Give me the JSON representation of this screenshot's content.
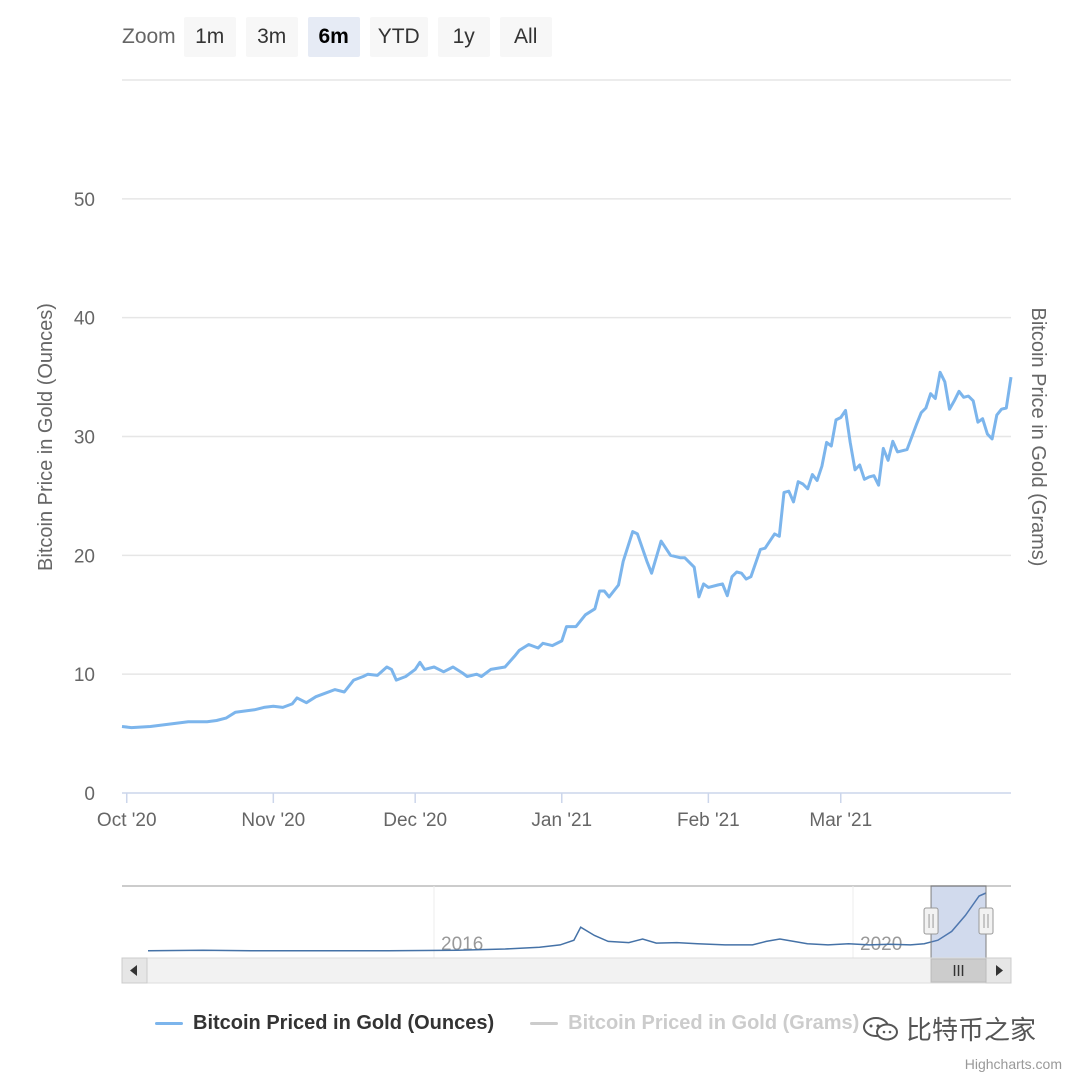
{
  "zoom": {
    "label": "Zoom",
    "buttons": [
      {
        "label": "1m",
        "active": false
      },
      {
        "label": "3m",
        "active": false
      },
      {
        "label": "6m",
        "active": true
      },
      {
        "label": "YTD",
        "active": false
      },
      {
        "label": "1y",
        "active": false
      },
      {
        "label": "All",
        "active": false
      }
    ]
  },
  "legend": {
    "items": [
      {
        "label": "Bitcoin Priced in Gold (Ounces)",
        "color": "#7cb5ec",
        "text_color": "#333333",
        "visible": true
      },
      {
        "label": "Bitcoin Priced in Gold (Grams)",
        "color": "#cccccc",
        "text_color": "#cccccc",
        "visible": false
      }
    ]
  },
  "credits": "Highcharts.com",
  "watermark": {
    "text": "比特币之家",
    "icon": "chat-bubbles-icon"
  },
  "chart_data": {
    "type": "line",
    "title": "",
    "ylabel_left": "Bitcoin Price in Gold (Ounces)",
    "ylabel_right": "Bitcoin Price in Gold (Grams)",
    "ylim": [
      0,
      60
    ],
    "yticks": [
      0,
      10,
      20,
      30,
      40,
      50
    ],
    "grid": true,
    "legend_position": "bottom-center",
    "x_range": [
      "2020-09-30",
      "2021-03-31"
    ],
    "xticks": [
      {
        "label": "Oct '20",
        "date": "2020-10-01"
      },
      {
        "label": "Nov '20",
        "date": "2020-11-01"
      },
      {
        "label": "Dec '20",
        "date": "2020-12-01"
      },
      {
        "label": "Jan '21",
        "date": "2021-01-01"
      },
      {
        "label": "Feb '21",
        "date": "2021-02-01"
      },
      {
        "label": "Mar '21",
        "date": "2021-03-01"
      }
    ],
    "series": [
      {
        "name": "Bitcoin Priced in Gold (Ounces)",
        "color": "#7cb5ec",
        "points": [
          [
            "2020-09-30",
            5.6
          ],
          [
            "2020-10-02",
            5.5
          ],
          [
            "2020-10-06",
            5.6
          ],
          [
            "2020-10-10",
            5.8
          ],
          [
            "2020-10-14",
            6.0
          ],
          [
            "2020-10-18",
            6.0
          ],
          [
            "2020-10-20",
            6.1
          ],
          [
            "2020-10-22",
            6.3
          ],
          [
            "2020-10-24",
            6.8
          ],
          [
            "2020-10-26",
            6.9
          ],
          [
            "2020-10-28",
            7.0
          ],
          [
            "2020-10-30",
            7.2
          ],
          [
            "2020-11-01",
            7.3
          ],
          [
            "2020-11-03",
            7.2
          ],
          [
            "2020-11-05",
            7.5
          ],
          [
            "2020-11-06",
            8.0
          ],
          [
            "2020-11-08",
            7.6
          ],
          [
            "2020-11-10",
            8.1
          ],
          [
            "2020-11-12",
            8.4
          ],
          [
            "2020-11-14",
            8.7
          ],
          [
            "2020-11-16",
            8.5
          ],
          [
            "2020-11-18",
            9.5
          ],
          [
            "2020-11-20",
            9.8
          ],
          [
            "2020-11-21",
            10.0
          ],
          [
            "2020-11-23",
            9.9
          ],
          [
            "2020-11-25",
            10.6
          ],
          [
            "2020-11-26",
            10.4
          ],
          [
            "2020-11-27",
            9.5
          ],
          [
            "2020-11-29",
            9.8
          ],
          [
            "2020-12-01",
            10.4
          ],
          [
            "2020-12-02",
            11.0
          ],
          [
            "2020-12-03",
            10.4
          ],
          [
            "2020-12-05",
            10.6
          ],
          [
            "2020-12-07",
            10.2
          ],
          [
            "2020-12-09",
            10.6
          ],
          [
            "2020-12-11",
            10.1
          ],
          [
            "2020-12-12",
            9.8
          ],
          [
            "2020-12-14",
            10.0
          ],
          [
            "2020-12-15",
            9.8
          ],
          [
            "2020-12-17",
            10.4
          ],
          [
            "2020-12-20",
            10.6
          ],
          [
            "2020-12-22",
            11.5
          ],
          [
            "2020-12-23",
            12.0
          ],
          [
            "2020-12-25",
            12.5
          ],
          [
            "2020-12-27",
            12.2
          ],
          [
            "2020-12-28",
            12.6
          ],
          [
            "2020-12-30",
            12.4
          ],
          [
            "2021-01-01",
            12.8
          ],
          [
            "2021-01-02",
            14.0
          ],
          [
            "2021-01-04",
            14.0
          ],
          [
            "2021-01-06",
            15.0
          ],
          [
            "2021-01-08",
            15.5
          ],
          [
            "2021-01-09",
            17.0
          ],
          [
            "2021-01-10",
            17.0
          ],
          [
            "2021-01-11",
            16.5
          ],
          [
            "2021-01-13",
            17.5
          ],
          [
            "2021-01-14",
            19.5
          ],
          [
            "2021-01-16",
            22.0
          ],
          [
            "2021-01-17",
            21.8
          ],
          [
            "2021-01-19",
            19.5
          ],
          [
            "2021-01-20",
            18.5
          ],
          [
            "2021-01-22",
            21.2
          ],
          [
            "2021-01-24",
            20.0
          ],
          [
            "2021-01-26",
            19.8
          ],
          [
            "2021-01-27",
            19.8
          ],
          [
            "2021-01-29",
            19.0
          ],
          [
            "2021-01-30",
            16.5
          ],
          [
            "2021-01-31",
            17.6
          ],
          [
            "2021-02-01",
            17.3
          ],
          [
            "2021-02-03",
            17.5
          ],
          [
            "2021-02-04",
            17.6
          ],
          [
            "2021-02-05",
            16.6
          ],
          [
            "2021-02-06",
            18.2
          ],
          [
            "2021-02-07",
            18.6
          ],
          [
            "2021-02-08",
            18.5
          ],
          [
            "2021-02-09",
            18.0
          ],
          [
            "2021-02-10",
            18.2
          ],
          [
            "2021-02-12",
            20.5
          ],
          [
            "2021-02-13",
            20.6
          ],
          [
            "2021-02-15",
            21.8
          ],
          [
            "2021-02-16",
            21.6
          ],
          [
            "2021-02-17",
            25.3
          ],
          [
            "2021-02-18",
            25.4
          ],
          [
            "2021-02-19",
            24.5
          ],
          [
            "2021-02-20",
            26.2
          ],
          [
            "2021-02-21",
            26.0
          ],
          [
            "2021-02-22",
            25.6
          ],
          [
            "2021-02-23",
            26.8
          ],
          [
            "2021-02-24",
            26.3
          ],
          [
            "2021-02-25",
            27.5
          ],
          [
            "2021-02-26",
            29.5
          ],
          [
            "2021-02-27",
            29.2
          ],
          [
            "2021-02-28",
            31.4
          ],
          [
            "2021-03-01",
            31.6
          ],
          [
            "2021-03-02",
            32.2
          ],
          [
            "2021-03-03",
            29.5
          ],
          [
            "2021-03-04",
            27.2
          ],
          [
            "2021-03-05",
            27.6
          ],
          [
            "2021-03-06",
            26.4
          ],
          [
            "2021-03-07",
            26.6
          ],
          [
            "2021-03-08",
            26.7
          ],
          [
            "2021-03-09",
            25.9
          ],
          [
            "2021-03-10",
            29.0
          ],
          [
            "2021-03-11",
            28.0
          ],
          [
            "2021-03-12",
            29.6
          ],
          [
            "2021-03-13",
            28.7
          ],
          [
            "2021-03-15",
            28.9
          ],
          [
            "2021-03-17",
            31.0
          ],
          [
            "2021-03-18",
            32.0
          ],
          [
            "2021-03-19",
            32.4
          ],
          [
            "2021-03-20",
            33.6
          ],
          [
            "2021-03-21",
            33.2
          ],
          [
            "2021-03-22",
            35.4
          ],
          [
            "2021-03-23",
            34.6
          ],
          [
            "2021-03-24",
            32.3
          ],
          [
            "2021-03-25",
            33.0
          ],
          [
            "2021-03-26",
            33.8
          ],
          [
            "2021-03-27",
            33.3
          ],
          [
            "2021-03-28",
            33.4
          ],
          [
            "2021-03-29",
            33.0
          ],
          [
            "2021-03-30",
            31.2
          ],
          [
            "2021-03-31",
            31.5
          ],
          [
            "2021-04-01",
            30.2
          ],
          [
            "2021-04-02",
            29.8
          ],
          [
            "2021-04-03",
            31.8
          ],
          [
            "2021-04-04",
            32.3
          ],
          [
            "2021-04-05",
            32.4
          ],
          [
            "2021-04-06",
            35.0
          ]
        ]
      }
    ]
  },
  "navigator": {
    "labels": [
      "2016",
      "2020"
    ],
    "series_shape": [
      [
        0.0,
        0.02
      ],
      [
        0.08,
        0.03
      ],
      [
        0.15,
        0.02
      ],
      [
        0.25,
        0.02
      ],
      [
        0.35,
        0.02
      ],
      [
        0.45,
        0.03
      ],
      [
        0.52,
        0.05
      ],
      [
        0.57,
        0.08
      ],
      [
        0.6,
        0.12
      ],
      [
        0.62,
        0.2
      ],
      [
        0.63,
        0.42
      ],
      [
        0.65,
        0.28
      ],
      [
        0.67,
        0.18
      ],
      [
        0.7,
        0.16
      ],
      [
        0.72,
        0.22
      ],
      [
        0.74,
        0.15
      ],
      [
        0.77,
        0.16
      ],
      [
        0.8,
        0.14
      ],
      [
        0.84,
        0.12
      ],
      [
        0.88,
        0.12
      ],
      [
        0.9,
        0.18
      ],
      [
        0.92,
        0.22
      ],
      [
        0.94,
        0.18
      ],
      [
        0.96,
        0.14
      ],
      [
        0.99,
        0.12
      ],
      [
        1.02,
        0.14
      ],
      [
        1.05,
        0.12
      ],
      [
        1.08,
        0.13
      ],
      [
        1.11,
        0.12
      ],
      [
        1.13,
        0.14
      ],
      [
        1.15,
        0.2
      ],
      [
        1.17,
        0.35
      ],
      [
        1.19,
        0.62
      ],
      [
        1.21,
        0.95
      ],
      [
        1.22,
        1.0
      ]
    ],
    "selected_range": [
      1.14,
      1.22
    ]
  }
}
